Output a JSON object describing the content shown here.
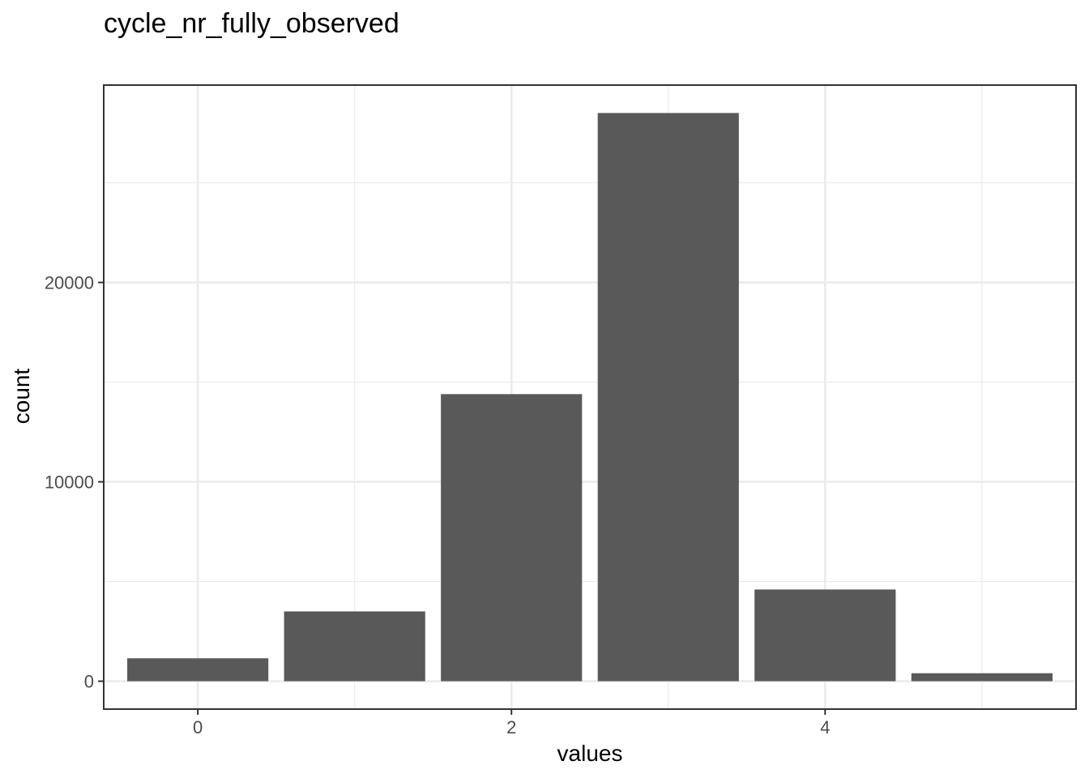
{
  "chart_data": {
    "type": "bar",
    "title": "cycle_nr_fully_observed",
    "xlabel": "values",
    "ylabel": "count",
    "x": [
      0,
      1,
      2,
      3,
      4,
      5
    ],
    "values": [
      1150,
      3500,
      14400,
      28500,
      4600,
      400
    ],
    "xlim": [
      -0.6,
      5.6
    ],
    "ylim": [
      -1400,
      29900
    ],
    "x_ticks": [
      0,
      2,
      4
    ],
    "x_tick_labels": [
      "0",
      "2",
      "4"
    ],
    "y_ticks": [
      0,
      10000,
      20000
    ],
    "y_tick_labels": [
      "0",
      "10000",
      "20000"
    ],
    "grid": true,
    "bar_color": "#595959",
    "grid_color": "#ebebeb",
    "frame_color": "#333333"
  }
}
